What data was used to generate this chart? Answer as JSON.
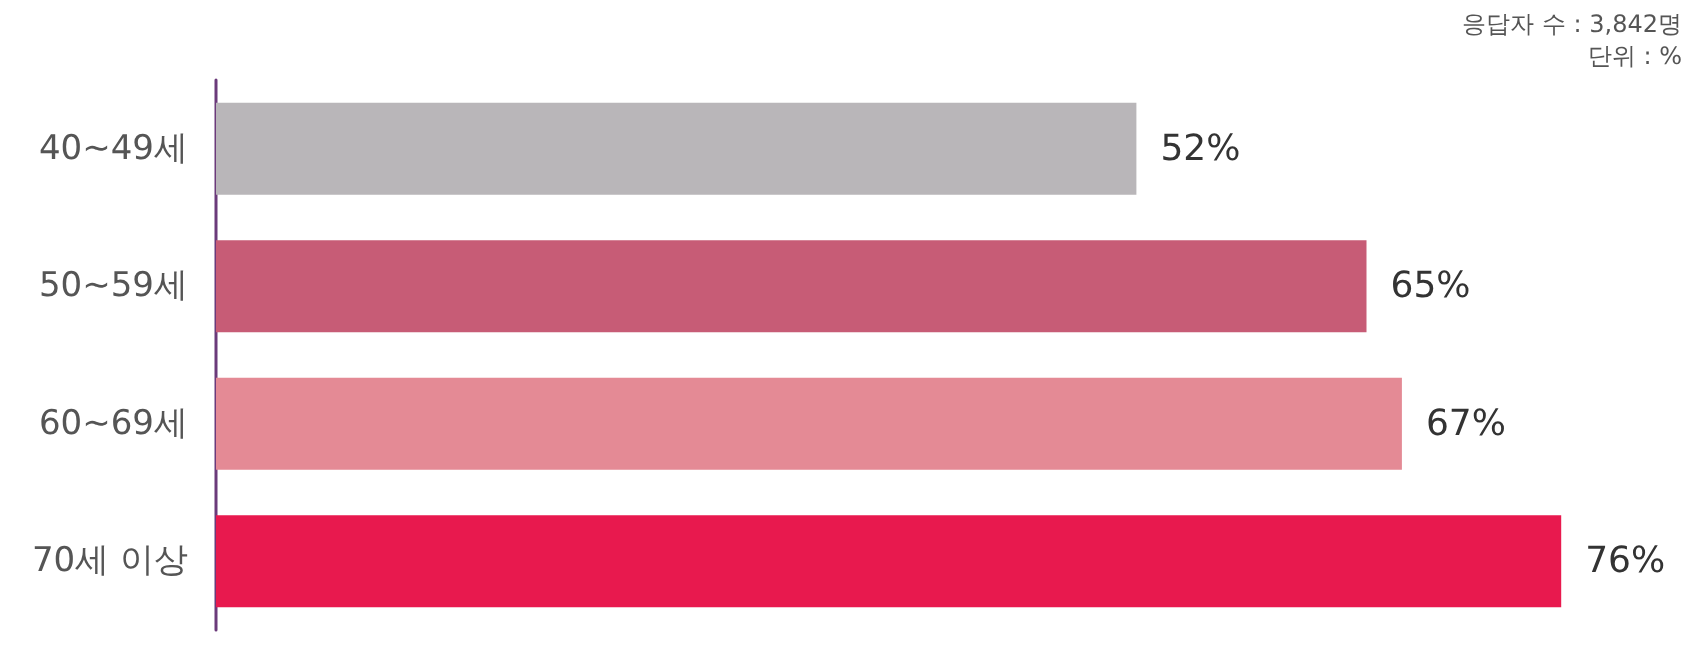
{
  "chart_data": {
    "type": "bar",
    "orientation": "horizontal",
    "categories": [
      "40~49세",
      "50~59세",
      "60~69세",
      "70세 이상"
    ],
    "values": [
      52,
      65,
      67,
      76
    ],
    "colors": [
      "#b9b6b9",
      "#c75c76",
      "#e48a95",
      "#e8194e"
    ],
    "data_labels": true,
    "value_labels": [
      "52%",
      "65%",
      "67%",
      "76%"
    ],
    "annotations": [
      "응답자 수 : 3,842명",
      "단위 : %"
    ]
  }
}
